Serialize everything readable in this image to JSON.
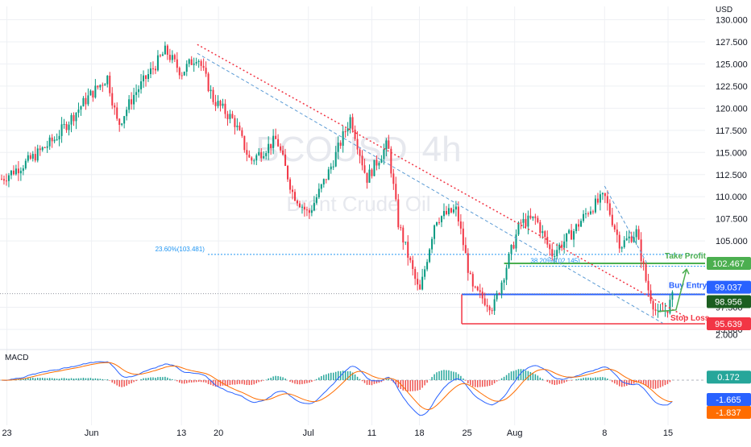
{
  "chart_data": [
    {
      "type": "candlestick",
      "currency": "USD",
      "watermark": {
        "symbol": "BCOUSD",
        "interval": "4h",
        "name": "Brent Crude Oil"
      },
      "ylim": [
        93.0,
        131.5
      ],
      "y_ticks": [
        "130.000",
        "127.500",
        "125.000",
        "122.500",
        "120.000",
        "117.500",
        "115.000",
        "112.500",
        "110.000",
        "107.500",
        "105.000",
        "97.500",
        "95.000"
      ],
      "x_ticks": [
        "23",
        "Jun",
        "13",
        "20",
        "Jul",
        "11",
        "18",
        "25",
        "Aug",
        "8",
        "15"
      ],
      "price_anchors": [
        {
          "d": 0,
          "p": 112.0
        },
        {
          "d": 5,
          "p": 114.0
        },
        {
          "d": 10,
          "p": 116.5
        },
        {
          "d": 16,
          "p": 121.0
        },
        {
          "d": 20,
          "p": 123.5
        },
        {
          "d": 22,
          "p": 118.0
        },
        {
          "d": 25,
          "p": 121.5
        },
        {
          "d": 31,
          "p": 126.5
        },
        {
          "d": 34,
          "p": 124.0
        },
        {
          "d": 37,
          "p": 126.0
        },
        {
          "d": 40,
          "p": 121.0
        },
        {
          "d": 44,
          "p": 118.5
        },
        {
          "d": 47,
          "p": 114.0
        },
        {
          "d": 52,
          "p": 116.5
        },
        {
          "d": 55,
          "p": 110.5
        },
        {
          "d": 58,
          "p": 108.0
        },
        {
          "d": 62,
          "p": 113.0
        },
        {
          "d": 66,
          "p": 119.0
        },
        {
          "d": 69,
          "p": 112.0
        },
        {
          "d": 73,
          "p": 116.0
        },
        {
          "d": 75,
          "p": 107.0
        },
        {
          "d": 79,
          "p": 99.0
        },
        {
          "d": 82,
          "p": 107.5
        },
        {
          "d": 86,
          "p": 108.5
        },
        {
          "d": 89,
          "p": 99.5
        },
        {
          "d": 93,
          "p": 97.5
        },
        {
          "d": 98,
          "p": 107.0
        },
        {
          "d": 101,
          "p": 107.5
        },
        {
          "d": 104,
          "p": 103.5
        },
        {
          "d": 108,
          "p": 106.0
        },
        {
          "d": 111,
          "p": 108.5
        },
        {
          "d": 114,
          "p": 110.0
        },
        {
          "d": 117,
          "p": 104.5
        },
        {
          "d": 120,
          "p": 106.0
        },
        {
          "d": 122,
          "p": 100.0
        },
        {
          "d": 124,
          "p": 96.5
        },
        {
          "d": 126,
          "p": 97.5
        },
        {
          "d": 127,
          "p": 98.8
        }
      ],
      "levels": [
        {
          "name": "Take Profit",
          "value": 102.467,
          "label": "102.467",
          "color": "#4caf50"
        },
        {
          "name": "Buy Entry",
          "value": 98.956,
          "label": "98.956",
          "color": "#2962ff"
        },
        {
          "name": "Stop Loss",
          "value": 95.639,
          "label": "95.639",
          "color": "#f23645"
        },
        {
          "name": "last price",
          "value": 99.037,
          "label": "99.037",
          "color": "#2962ff"
        }
      ],
      "fibonacci": [
        {
          "label": "23.60%(103.481)",
          "value": 103.481
        },
        {
          "label": "38.20%(102.145)",
          "value": 102.145
        }
      ]
    },
    {
      "type": "line",
      "name": "MACD",
      "ylim": [
        -2.4,
        2.4
      ],
      "y_ticks": [
        "2.000"
      ],
      "value_labels": [
        {
          "label": "0.172",
          "value": 0.172,
          "color": "#26a69a"
        },
        {
          "label": "-1.665",
          "value": -1.665,
          "color": "#2962ff"
        },
        {
          "label": "-1.837",
          "value": -1.837,
          "color": "#ff6d00"
        }
      ]
    }
  ],
  "colors": {
    "up": "#089981",
    "down": "#f23645",
    "grid": "#eef0f4",
    "axis_text": "#131722",
    "macd": "#2962ff",
    "signal": "#ff6d00"
  }
}
